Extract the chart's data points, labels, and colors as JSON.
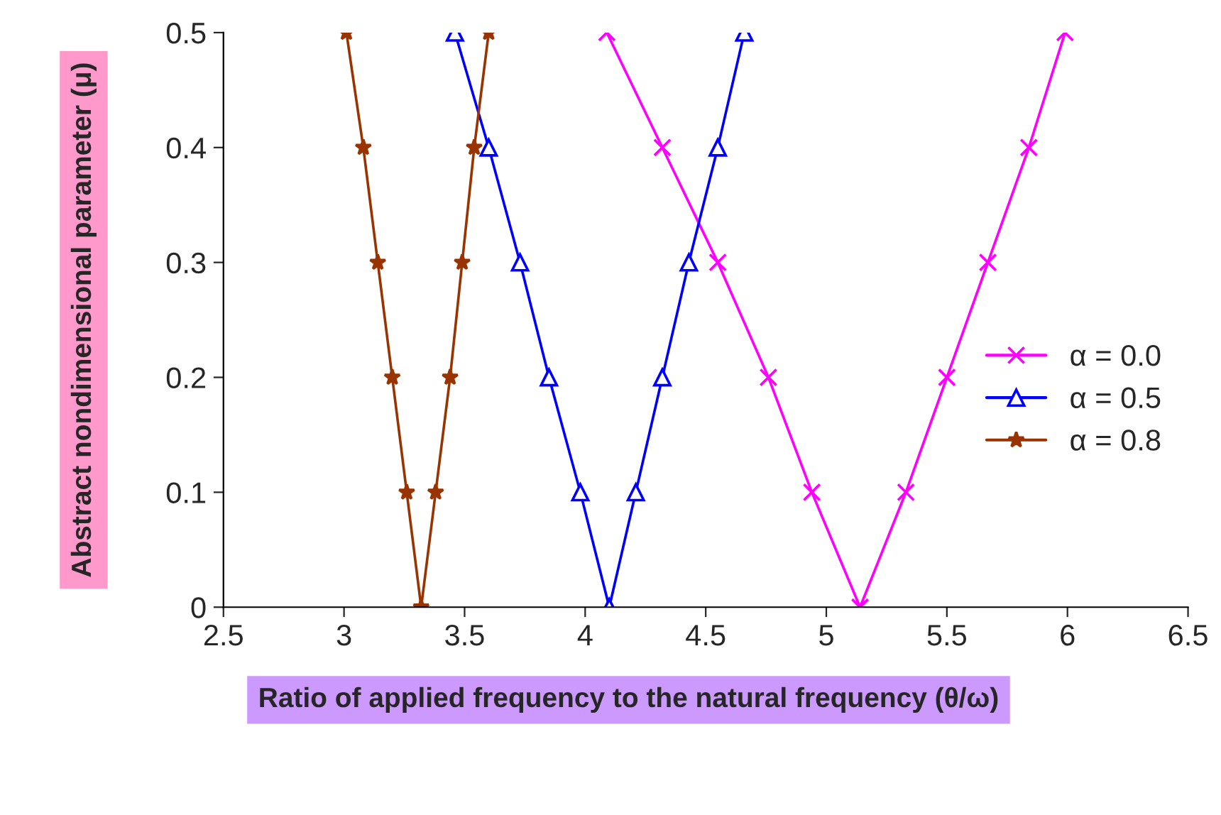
{
  "chart_data": {
    "type": "line",
    "xlabel": "Ratio of applied frequency to the natural frequency (θ/ω)",
    "ylabel": "Abstract nondimensional parameter (μ)",
    "xlim": [
      2.5,
      6.5
    ],
    "xticks": [
      2.5,
      3,
      3.5,
      4,
      4.5,
      5,
      5.5,
      6,
      6.5
    ],
    "ylim": [
      0,
      0.5
    ],
    "yticks": [
      0,
      0.1,
      0.2,
      0.3,
      0.4,
      0.5
    ],
    "grid": false,
    "legend": "right",
    "line_style": "solid",
    "series": [
      {
        "name": "α = 0.0",
        "color": "#ff00ff",
        "marker": "cross",
        "x": [
          4.09,
          4.32,
          4.55,
          4.76,
          4.94,
          5.14,
          5.33,
          5.5,
          5.67,
          5.84,
          5.99
        ],
        "values": [
          0.5,
          0.4,
          0.3,
          0.2,
          0.1,
          0,
          0.1,
          0.2,
          0.3,
          0.4,
          0.5
        ]
      },
      {
        "name": "α = 0.5",
        "color": "#0000ff",
        "marker": "triangle",
        "x": [
          3.46,
          3.6,
          3.73,
          3.85,
          3.98,
          4.1,
          4.21,
          4.32,
          4.43,
          4.55,
          4.66
        ],
        "values": [
          0.5,
          0.4,
          0.3,
          0.2,
          0.1,
          0,
          0.1,
          0.2,
          0.3,
          0.4,
          0.5
        ]
      },
      {
        "name": "α = 0.8",
        "color": "#993300",
        "marker": "star",
        "x": [
          3.01,
          3.08,
          3.14,
          3.2,
          3.26,
          3.32,
          3.38,
          3.44,
          3.49,
          3.54,
          3.6
        ],
        "values": [
          0.5,
          0.4,
          0.3,
          0.2,
          0.1,
          0,
          0.1,
          0.2,
          0.3,
          0.4,
          0.5
        ]
      }
    ]
  }
}
